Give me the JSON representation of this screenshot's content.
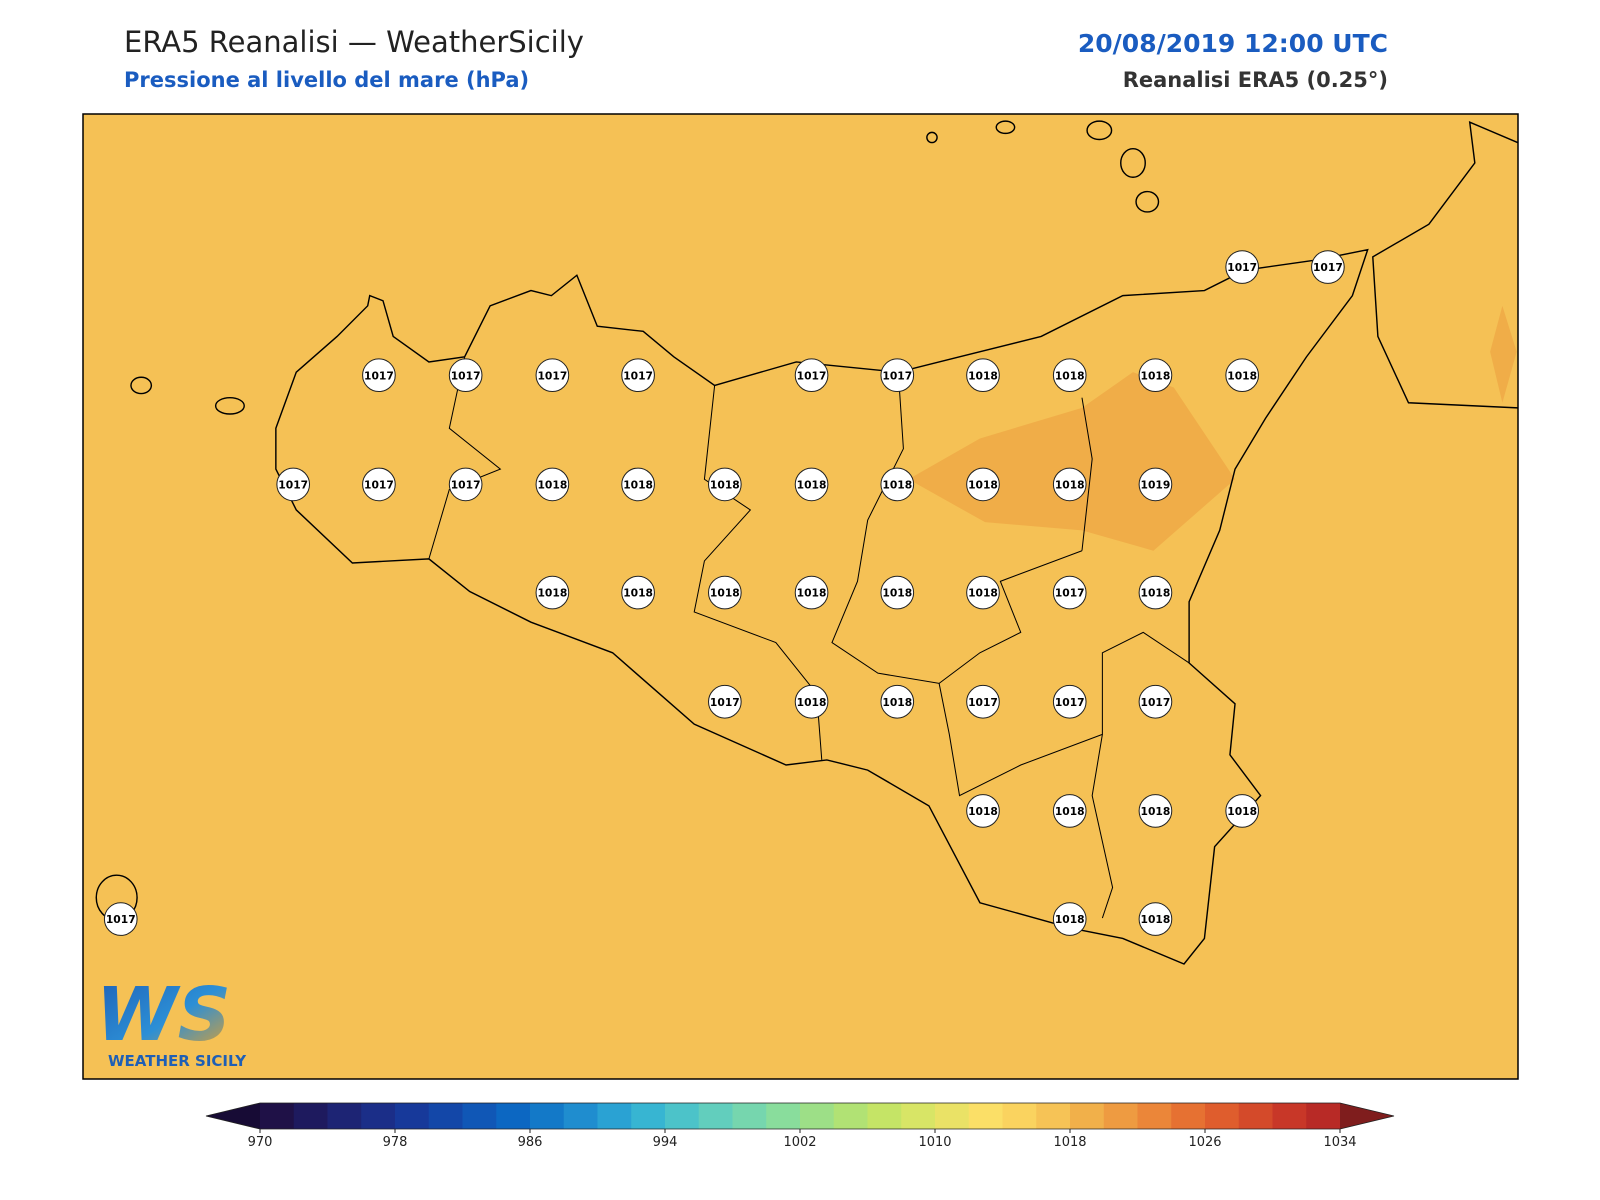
{
  "header": {
    "title": "ERA5 Reanalisi — WeatherSicily",
    "subtitle": "Pressione al livello del mare (hPa)",
    "datetime": "20/08/2019 12:00 UTC",
    "source": "Reanalisi ERA5 (0.25°)"
  },
  "map": {
    "fill": "#f5c155",
    "highlight": "#f0ad48",
    "coast_color": "#000000",
    "stations": [
      1017,
      1017,
      1017,
      1017,
      1017,
      1017,
      1017,
      1017,
      1018,
      1018,
      1018,
      1018,
      1017,
      1017,
      1017,
      1018,
      1018,
      1018,
      1018,
      1018,
      1018,
      1018,
      1019,
      1018,
      1018,
      1018,
      1018,
      1018,
      1018,
      1017,
      1018,
      1017,
      1018,
      1018,
      1017,
      1017,
      1017,
      1018,
      1018,
      1018,
      1018,
      1017,
      1018,
      1018
    ]
  },
  "logo": {
    "mark": "WS",
    "text": "WEATHER SICILY"
  },
  "colorbar": {
    "ticks": [
      970,
      978,
      986,
      994,
      1002,
      1010,
      1018,
      1026,
      1034
    ],
    "colors": [
      "#1f1147",
      "#1e1a5e",
      "#1d2474",
      "#1b2e88",
      "#17399a",
      "#1347a8",
      "#1057b6",
      "#0c67c2",
      "#1379c8",
      "#1f8dcf",
      "#2aa2d3",
      "#37b5d2",
      "#4cc3c9",
      "#62cebd",
      "#76d6ae",
      "#89dd9c",
      "#9ddf87",
      "#b1e274",
      "#c5e466",
      "#d8e566",
      "#eae266",
      "#fbdf67",
      "#fad35f",
      "#f6c356",
      "#f1b04a",
      "#ee9b41",
      "#eb8639",
      "#e67132",
      "#df5d2d",
      "#d44a2a",
      "#c83728",
      "#b82a26"
    ],
    "extend_colors": [
      "#170b35",
      "#7f1d1d"
    ]
  }
}
